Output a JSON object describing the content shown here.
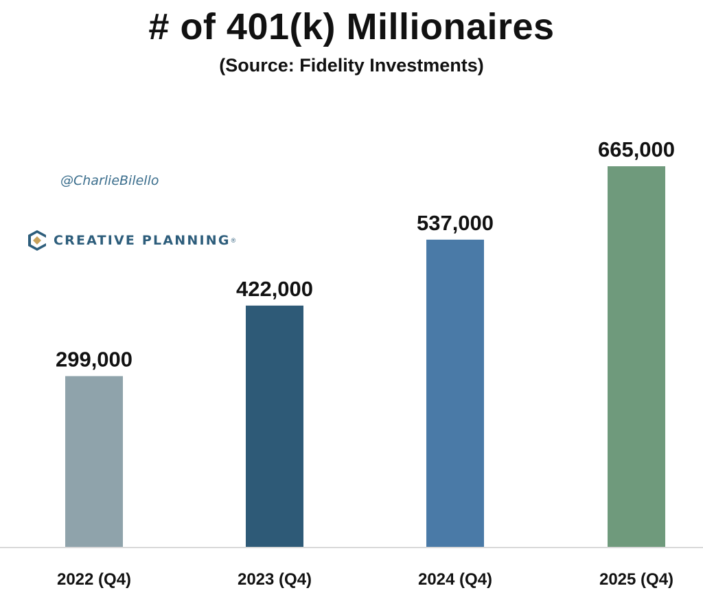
{
  "chart_data": {
    "type": "bar",
    "title": "# of 401(k) Millionaires",
    "subtitle": "(Source: Fidelity Investments)",
    "categories": [
      "2022 (Q4)",
      "2023 (Q4)",
      "2024 (Q4)",
      "2025 (Q4)"
    ],
    "values": [
      299000,
      422000,
      537000,
      665000
    ],
    "value_labels": [
      "299,000",
      "422,000",
      "537,000",
      "665,000"
    ],
    "bar_colors": [
      "#8fa3ab",
      "#2e5a77",
      "#4a7aa7",
      "#6f9a7c"
    ],
    "ylim": [
      0,
      665000
    ],
    "xlabel": "",
    "ylabel": "",
    "grid": false
  },
  "watermark": {
    "handle": "@CharlieBilello",
    "brand": "CREATIVE PLANNING",
    "brand_mark": "®"
  },
  "colors": {
    "axis": "#d9d9d9",
    "text": "#111111",
    "handle": "#3a6d8c",
    "brand": "#2d5d7b",
    "brand_accent": "#c9a25a"
  }
}
